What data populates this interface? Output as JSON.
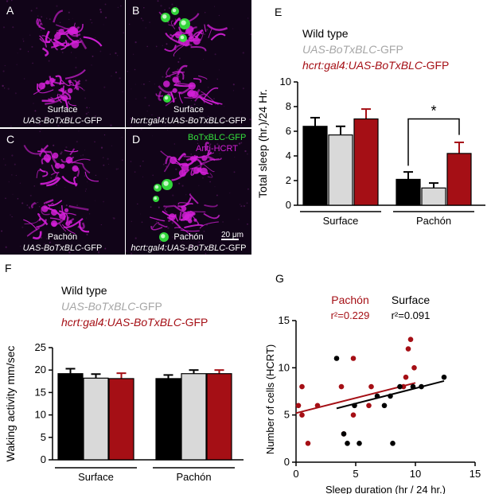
{
  "colors": {
    "wild_type": "#000000",
    "boTx": "#d9d9d9",
    "hcrt": "#a50f15",
    "pachon_text": "#a50f15",
    "micro_bg": "#110418",
    "magenta": "#d21fd6",
    "green": "#35e03d"
  },
  "micrographs": {
    "A": {
      "letter": "A",
      "line1": "Surface",
      "line2_italic": "UAS-BoTxBLC",
      "line2_rest": "-GFP"
    },
    "B": {
      "letter": "B",
      "line1": "Surface",
      "line2_italic": "hcrt:gal4:UAS-BoTxBLC",
      "line2_rest": "-GFP"
    },
    "C": {
      "letter": "C",
      "line1": "Pachón",
      "line2_italic": "UAS-BoTxBLC",
      "line2_rest": "-GFP"
    },
    "D": {
      "letter": "D",
      "line1": "Pachón",
      "line2_italic": "hcrt:gal4:UAS-BoTxBLC",
      "line2_rest": "-GFP",
      "legend_green": "BoTxBLC-GFP",
      "legend_magenta": "Anti-HCRT",
      "scalebar": "20 μm"
    }
  },
  "chart_data": [
    {
      "id": "E",
      "type": "bar",
      "panel_letter": "E",
      "legend": [
        {
          "italic": "",
          "rest": "Wild type"
        },
        {
          "italic": "UAS-BoTxBLC",
          "rest": "-GFP"
        },
        {
          "italic": "hcrt:gal4:UAS-BoTxBLC",
          "rest": "-GFP"
        }
      ],
      "groups": [
        "Surface",
        "Pachón"
      ],
      "series": [
        {
          "name": "Wild type",
          "values": [
            6.4,
            2.1
          ],
          "errors": [
            0.7,
            0.6
          ]
        },
        {
          "name": "UAS-BoTxBLC-GFP",
          "values": [
            5.7,
            1.4
          ],
          "errors": [
            0.7,
            0.4
          ]
        },
        {
          "name": "hcrt:gal4:UAS-BoTxBLC-GFP",
          "values": [
            7.0,
            4.2
          ],
          "errors": [
            0.8,
            0.9
          ]
        }
      ],
      "ylabel": "Total sleep (hr.)/24  Hr.",
      "ylim": [
        0,
        10
      ],
      "yticks": [
        "0",
        "2",
        "4",
        "6",
        "8",
        "10"
      ],
      "significance": "*"
    },
    {
      "id": "F",
      "type": "bar",
      "panel_letter": "F",
      "legend": [
        {
          "italic": "",
          "rest": "Wild type"
        },
        {
          "italic": "UAS-BoTxBLC",
          "rest": "-GFP"
        },
        {
          "italic": "hcrt:gal4:UAS-BoTxBLC",
          "rest": "-GFP"
        }
      ],
      "groups": [
        "Surface",
        "Pachón"
      ],
      "series": [
        {
          "name": "Wild type",
          "values": [
            19.2,
            18.1
          ],
          "errors": [
            1.1,
            0.8
          ]
        },
        {
          "name": "UAS-BoTxBLC-GFP",
          "values": [
            18.2,
            19.2
          ],
          "errors": [
            0.9,
            0.8
          ]
        },
        {
          "name": "hcrt:gal4:UAS-BoTxBLC-GFP",
          "values": [
            18.1,
            19.2
          ],
          "errors": [
            1.2,
            0.8
          ]
        }
      ],
      "ylabel": "Waking activity mm/sec",
      "ylim": [
        0,
        25
      ],
      "yticks": [
        "0",
        "5",
        "10",
        "15",
        "20",
        "25"
      ]
    },
    {
      "id": "G",
      "type": "scatter",
      "panel_letter": "G",
      "xlabel": "Sleep duration (hr / 24 hr.)",
      "ylabel": "Number of cells (HCRT)",
      "xlim": [
        0,
        15
      ],
      "ylim": [
        0,
        15
      ],
      "xticks": [
        "0",
        "5",
        "10",
        "15"
      ],
      "yticks": [
        "0",
        "5",
        "10",
        "15"
      ],
      "series": [
        {
          "name": "Pachón",
          "r2": "r²=0.229",
          "points": [
            [
              0.2,
              6
            ],
            [
              0.5,
              8
            ],
            [
              0.5,
              5
            ],
            [
              1,
              2
            ],
            [
              1.8,
              6
            ],
            [
              3.8,
              8
            ],
            [
              4,
              3
            ],
            [
              4.8,
              11
            ],
            [
              4.8,
              5
            ],
            [
              6.1,
              6
            ],
            [
              6.3,
              8
            ],
            [
              9,
              8
            ],
            [
              9.2,
              9
            ],
            [
              9.4,
              12
            ],
            [
              9.6,
              13
            ],
            [
              9.9,
              10
            ]
          ],
          "fit": [
            [
              0,
              5.2
            ],
            [
              10,
              8.4
            ]
          ]
        },
        {
          "name": "Surface",
          "r2": "r²=0.091",
          "points": [
            [
              3.4,
              11
            ],
            [
              4,
              3
            ],
            [
              4.3,
              2
            ],
            [
              4.9,
              6
            ],
            [
              5.3,
              2
            ],
            [
              6.8,
              7
            ],
            [
              7.4,
              6
            ],
            [
              7.9,
              7
            ],
            [
              8.1,
              2
            ],
            [
              8.7,
              8
            ],
            [
              9.8,
              8
            ],
            [
              10.5,
              8
            ],
            [
              12.4,
              9
            ]
          ],
          "fit": [
            [
              3.4,
              5.7
            ],
            [
              12.4,
              8.6
            ]
          ]
        }
      ]
    }
  ]
}
